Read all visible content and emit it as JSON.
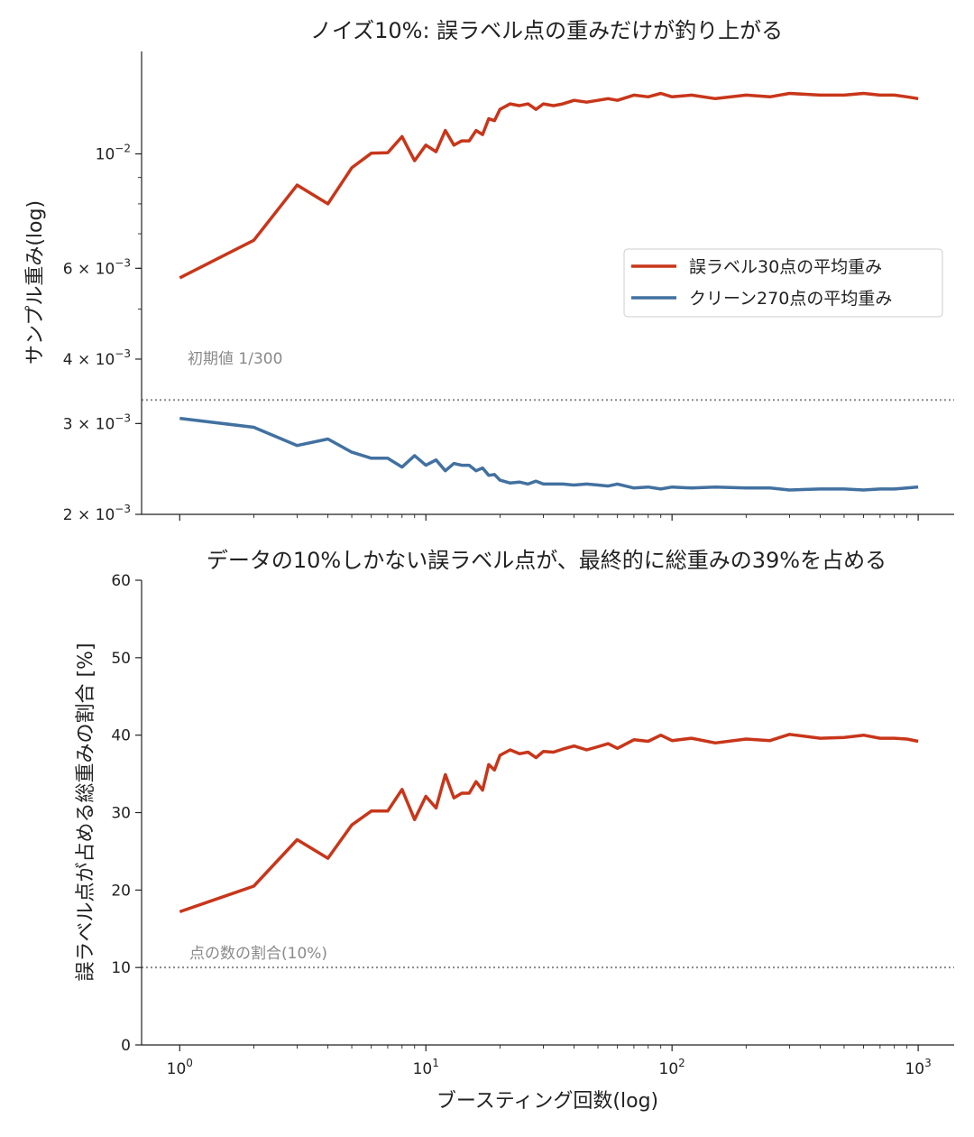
{
  "chart_data": [
    {
      "type": "line",
      "title": "ノイズ10%: 誤ラベル点の重みだけが釣り上がる",
      "ylabel": "サンプル重み(log)",
      "xscale": "log",
      "yscale": "log",
      "xlim": [
        0.7,
        1400
      ],
      "ylim": [
        0.002,
        0.0158
      ],
      "yticks": [
        {
          "value": 0.01,
          "label": "10",
          "exp": "−2"
        },
        {
          "value": 0.006,
          "label": "6 × 10",
          "exp": "−3"
        },
        {
          "value": 0.004,
          "label": "4 × 10",
          "exp": "−3"
        },
        {
          "value": 0.003,
          "label": "3 × 10",
          "exp": "−3"
        },
        {
          "value": 0.002,
          "label": "2 × 10",
          "exp": "−3"
        }
      ],
      "grid": false,
      "legend": {
        "position": "center-right"
      },
      "reference_line": {
        "value": 0.003333,
        "style": "dotted",
        "color": "#8a8a8a"
      },
      "annotation": {
        "text": "初期値 1/300"
      },
      "series": [
        {
          "name": "誤ラベル30点の平均重み",
          "color": "#c8361a",
          "x": [
            1,
            2,
            3,
            4,
            5,
            6,
            7,
            8,
            9,
            10,
            11,
            12,
            13,
            14,
            15,
            16,
            17,
            18,
            19,
            20,
            22,
            24,
            26,
            28,
            30,
            33,
            36,
            40,
            45,
            50,
            55,
            60,
            70,
            80,
            90,
            100,
            120,
            150,
            200,
            250,
            300,
            400,
            500,
            600,
            700,
            800,
            900,
            1000
          ],
          "y": [
            0.00575,
            0.0068,
            0.0087,
            0.008,
            0.0094,
            0.01003,
            0.01005,
            0.0108,
            0.0097,
            0.0104,
            0.0101,
            0.0111,
            0.0104,
            0.0106,
            0.0106,
            0.0111,
            0.0109,
            0.0117,
            0.0116,
            0.0122,
            0.0125,
            0.0124,
            0.0125,
            0.0122,
            0.0125,
            0.0124,
            0.0125,
            0.0127,
            0.0126,
            0.0127,
            0.0128,
            0.0127,
            0.013,
            0.0129,
            0.0131,
            0.0129,
            0.013,
            0.0128,
            0.013,
            0.0129,
            0.0131,
            0.013,
            0.013,
            0.0131,
            0.013,
            0.013,
            0.0129,
            0.0128
          ]
        },
        {
          "name": "クリーン270点の平均重み",
          "color": "#4271a0",
          "x": [
            1,
            2,
            3,
            4,
            5,
            6,
            7,
            8,
            9,
            10,
            11,
            12,
            13,
            14,
            15,
            16,
            17,
            18,
            19,
            20,
            22,
            24,
            26,
            28,
            30,
            33,
            36,
            40,
            45,
            50,
            55,
            60,
            70,
            80,
            90,
            100,
            120,
            150,
            200,
            250,
            300,
            400,
            500,
            600,
            700,
            800,
            900,
            1000
          ],
          "y": [
            0.00307,
            0.00295,
            0.00272,
            0.0028,
            0.00264,
            0.00257,
            0.00257,
            0.00247,
            0.0026,
            0.00249,
            0.00255,
            0.00243,
            0.00251,
            0.00249,
            0.00249,
            0.00243,
            0.00246,
            0.00238,
            0.00239,
            0.00233,
            0.0023,
            0.00231,
            0.00229,
            0.00232,
            0.00229,
            0.00229,
            0.00229,
            0.00228,
            0.00229,
            0.00228,
            0.00227,
            0.00229,
            0.00225,
            0.00226,
            0.00224,
            0.00226,
            0.00225,
            0.00226,
            0.00225,
            0.00225,
            0.00223,
            0.00224,
            0.00224,
            0.00223,
            0.00224,
            0.00224,
            0.00225,
            0.00226
          ]
        }
      ]
    },
    {
      "type": "line",
      "title": "データの10%しかない誤ラベル点が、最終的に総重みの39%を占める",
      "xlabel": "ブースティング回数(log)",
      "ylabel": "誤ラベル点が占める総重みの割合 [%]",
      "xscale": "log",
      "xlim": [
        0.7,
        1400
      ],
      "ylim": [
        0,
        60
      ],
      "yticks": [
        0,
        10,
        20,
        30,
        40,
        50,
        60
      ],
      "xticks": [
        {
          "value": 1,
          "base": "10",
          "exp": "0"
        },
        {
          "value": 10,
          "base": "10",
          "exp": "1"
        },
        {
          "value": 100,
          "base": "10",
          "exp": "2"
        },
        {
          "value": 1000,
          "base": "10",
          "exp": "3"
        }
      ],
      "grid": false,
      "reference_line": {
        "value": 10,
        "style": "dotted",
        "color": "#8a8a8a"
      },
      "annotation": {
        "text": "点の数の割合(10%)"
      },
      "series": [
        {
          "color": "#c8361a",
          "x": [
            1,
            2,
            3,
            4,
            5,
            6,
            7,
            8,
            9,
            10,
            11,
            12,
            13,
            14,
            15,
            16,
            17,
            18,
            19,
            20,
            22,
            24,
            26,
            28,
            30,
            33,
            36,
            40,
            45,
            50,
            55,
            60,
            70,
            80,
            90,
            100,
            120,
            150,
            200,
            250,
            300,
            400,
            500,
            600,
            700,
            800,
            900,
            1000
          ],
          "y": [
            17.2,
            20.5,
            26.5,
            24.1,
            28.4,
            30.2,
            30.2,
            33.0,
            29.1,
            32.1,
            30.6,
            34.9,
            31.9,
            32.5,
            32.5,
            34.0,
            32.9,
            36.2,
            35.5,
            37.4,
            38.1,
            37.6,
            37.8,
            37.1,
            37.9,
            37.8,
            38.2,
            38.6,
            38.1,
            38.5,
            38.9,
            38.3,
            39.4,
            39.2,
            40.0,
            39.3,
            39.6,
            39.0,
            39.5,
            39.3,
            40.1,
            39.6,
            39.7,
            40.0,
            39.6,
            39.6,
            39.5,
            39.2
          ]
        }
      ]
    }
  ]
}
